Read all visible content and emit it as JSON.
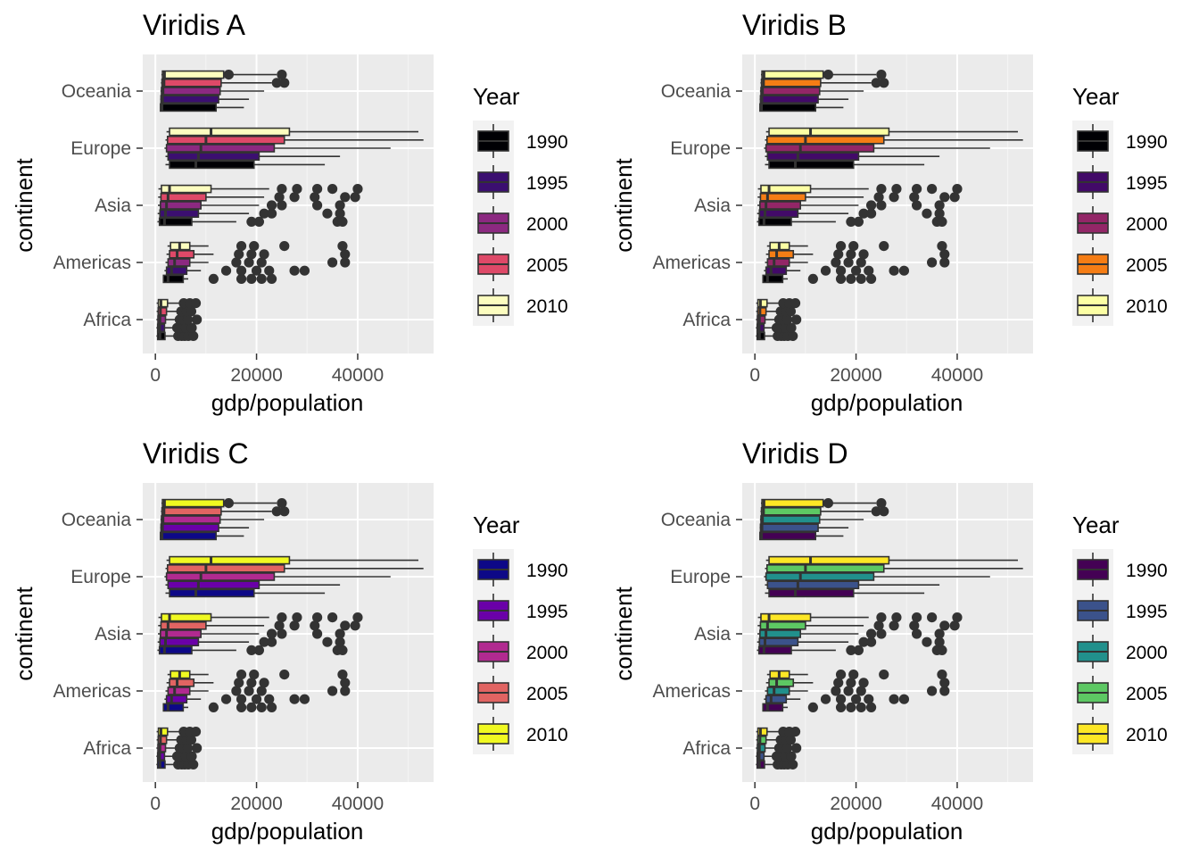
{
  "chart_data": [
    {
      "type": "boxplot",
      "title": "Viridis A",
      "xlabel": "gdp/population",
      "ylabel": "continent",
      "categories": [
        "Africa",
        "Americas",
        "Asia",
        "Europe",
        "Oceania"
      ],
      "xlim": [
        -2500,
        55000
      ],
      "x_ticks": [
        0,
        20000,
        40000
      ],
      "x_tick_labels": [
        "0",
        "20000",
        "40000"
      ],
      "orientation": "horizontal",
      "grid": true,
      "legend": {
        "title": "Year",
        "position": "right"
      },
      "years": [
        "1990",
        "1995",
        "2000",
        "2005",
        "2010"
      ],
      "colors": [
        "#000004",
        "#3B0F70",
        "#8C2981",
        "#DE4968",
        "#FCFDBF"
      ]
    },
    {
      "type": "boxplot",
      "title": "Viridis B",
      "xlabel": "gdp/population",
      "ylabel": "continent",
      "categories": [
        "Africa",
        "Americas",
        "Asia",
        "Europe",
        "Oceania"
      ],
      "xlim": [
        -2500,
        55000
      ],
      "x_ticks": [
        0,
        20000,
        40000
      ],
      "x_tick_labels": [
        "0",
        "20000",
        "40000"
      ],
      "orientation": "horizontal",
      "grid": true,
      "legend": {
        "title": "Year",
        "position": "right"
      },
      "years": [
        "1990",
        "1995",
        "2000",
        "2005",
        "2010"
      ],
      "colors": [
        "#000004",
        "#420A68",
        "#932667",
        "#F57D15",
        "#FCFFA4"
      ]
    },
    {
      "type": "boxplot",
      "title": "Viridis C",
      "xlabel": "gdp/population",
      "ylabel": "continent",
      "categories": [
        "Africa",
        "Americas",
        "Asia",
        "Europe",
        "Oceania"
      ],
      "xlim": [
        -2500,
        55000
      ],
      "x_ticks": [
        0,
        20000,
        40000
      ],
      "x_tick_labels": [
        "0",
        "20000",
        "40000"
      ],
      "orientation": "horizontal",
      "grid": true,
      "legend": {
        "title": "Year",
        "position": "right"
      },
      "years": [
        "1990",
        "1995",
        "2000",
        "2005",
        "2010"
      ],
      "colors": [
        "#0D0887",
        "#6A00A8",
        "#B12A90",
        "#E16462",
        "#F0F921"
      ]
    },
    {
      "type": "boxplot",
      "title": "Viridis D",
      "xlabel": "gdp/population",
      "ylabel": "continent",
      "categories": [
        "Africa",
        "Americas",
        "Asia",
        "Europe",
        "Oceania"
      ],
      "xlim": [
        -2500,
        55000
      ],
      "x_ticks": [
        0,
        20000,
        40000
      ],
      "x_tick_labels": [
        "0",
        "20000",
        "40000"
      ],
      "orientation": "horizontal",
      "grid": true,
      "legend": {
        "title": "Year",
        "position": "right"
      },
      "years": [
        "1990",
        "1995",
        "2000",
        "2005",
        "2010"
      ],
      "colors": [
        "#440154",
        "#3B528B",
        "#21908C",
        "#5DC863",
        "#FDE725"
      ]
    }
  ],
  "box_stats": {
    "Africa": [
      {
        "year": "1990",
        "min": 200,
        "q1": 450,
        "median": 900,
        "q3": 1900,
        "max": 4000,
        "outliers": [
          4500,
          5200,
          5800,
          6500,
          7500
        ]
      },
      {
        "year": "1995",
        "min": 200,
        "q1": 450,
        "median": 850,
        "q3": 1800,
        "max": 3800,
        "outliers": [
          4300,
          5000,
          6000,
          7200
        ]
      },
      {
        "year": "2000",
        "min": 200,
        "q1": 500,
        "median": 900,
        "q3": 2000,
        "max": 4200,
        "outliers": [
          4800,
          5600,
          6400,
          8200
        ]
      },
      {
        "year": "2005",
        "min": 250,
        "q1": 550,
        "median": 1000,
        "q3": 2200,
        "max": 4600,
        "outliers": [
          5100,
          6200,
          7100
        ]
      },
      {
        "year": "2010",
        "min": 250,
        "q1": 600,
        "median": 1100,
        "q3": 2400,
        "max": 5000,
        "outliers": [
          5600,
          6800,
          8000
        ]
      }
    ],
    "Americas": [
      {
        "year": "1990",
        "min": 1500,
        "q1": 1600,
        "median": 2500,
        "q3": 5500,
        "max": 6500,
        "outliers": [
          11500,
          17000,
          19000,
          21000,
          23000
        ]
      },
      {
        "year": "1995",
        "min": 1800,
        "q1": 2200,
        "median": 3200,
        "q3": 6200,
        "max": 9000,
        "outliers": [
          14000,
          17000,
          20000,
          22500,
          27500,
          29500
        ]
      },
      {
        "year": "2000",
        "min": 2000,
        "q1": 2500,
        "median": 3800,
        "q3": 6800,
        "max": 10500,
        "outliers": [
          16000,
          18500,
          21000,
          35000,
          37500
        ]
      },
      {
        "year": "2005",
        "min": 2200,
        "q1": 2800,
        "median": 4300,
        "q3": 7600,
        "max": 11500,
        "outliers": [
          16500,
          19000,
          21500,
          37500
        ]
      },
      {
        "year": "2010",
        "min": 2400,
        "q1": 3000,
        "median": 4800,
        "q3": 6800,
        "max": 10500,
        "outliers": [
          17000,
          19500,
          25500,
          37000
        ]
      }
    ],
    "Asia": [
      {
        "year": "1990",
        "min": 400,
        "q1": 800,
        "median": 1800,
        "q3": 7200,
        "max": 16000,
        "outliers": [
          19000,
          20500,
          36000,
          37000
        ]
      },
      {
        "year": "1995",
        "min": 450,
        "q1": 900,
        "median": 2000,
        "q3": 8500,
        "max": 18500,
        "outliers": [
          21500,
          23000,
          34000,
          36500
        ]
      },
      {
        "year": "2000",
        "min": 500,
        "q1": 1000,
        "median": 2200,
        "q3": 9000,
        "max": 20500,
        "outliers": [
          23000,
          25000,
          32000,
          36500
        ]
      },
      {
        "year": "2005",
        "min": 550,
        "q1": 1100,
        "median": 2500,
        "q3": 10000,
        "max": 21500,
        "outliers": [
          24500,
          27500,
          31500,
          37500,
          39500
        ]
      },
      {
        "year": "2010",
        "min": 600,
        "q1": 1200,
        "median": 2800,
        "q3": 11000,
        "max": 22500,
        "outliers": [
          25000,
          28000,
          32000,
          35000,
          40000
        ]
      }
    ],
    "Europe": [
      {
        "year": "1990",
        "min": 2000,
        "q1": 2800,
        "median": 8000,
        "q3": 19500,
        "max": 33500,
        "outliers": []
      },
      {
        "year": "1995",
        "min": 2000,
        "q1": 2500,
        "median": 8500,
        "q3": 20500,
        "max": 36500,
        "outliers": []
      },
      {
        "year": "2000",
        "min": 1800,
        "q1": 2200,
        "median": 9000,
        "q3": 23500,
        "max": 46500,
        "outliers": []
      },
      {
        "year": "2005",
        "min": 2000,
        "q1": 2400,
        "median": 10000,
        "q3": 25500,
        "max": 53000,
        "outliers": []
      },
      {
        "year": "2010",
        "min": 2200,
        "q1": 2800,
        "median": 11000,
        "q3": 26500,
        "max": 52000,
        "outliers": []
      }
    ],
    "Oceania": [
      {
        "year": "1990",
        "min": 900,
        "q1": 1000,
        "median": 1300,
        "q3": 12000,
        "max": 17500,
        "outliers": []
      },
      {
        "year": "1995",
        "min": 950,
        "q1": 1100,
        "median": 1400,
        "q3": 12500,
        "max": 18500,
        "outliers": []
      },
      {
        "year": "2000",
        "min": 1000,
        "q1": 1200,
        "median": 1500,
        "q3": 12800,
        "max": 21500,
        "outliers": []
      },
      {
        "year": "2005",
        "min": 1100,
        "q1": 1300,
        "median": 1700,
        "q3": 13000,
        "max": 23000,
        "outliers": [
          24000,
          25500
        ]
      },
      {
        "year": "2010",
        "min": 1200,
        "q1": 1400,
        "median": 1800,
        "q3": 13500,
        "max": 24000,
        "outliers": [
          14500,
          25000
        ]
      }
    ]
  }
}
